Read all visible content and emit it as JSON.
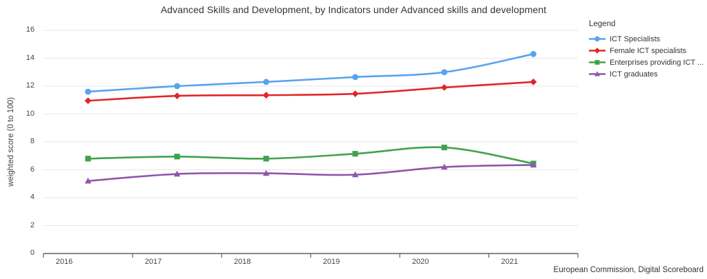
{
  "title": "Advanced Skills and Development, by Indicators under Advanced skills and development",
  "source": "European Commission, Digital Scoreboard",
  "legend": {
    "title": "Legend"
  },
  "chart_data": {
    "type": "line",
    "title": "Advanced Skills and Development, by Indicators under Advanced skills and development",
    "x": [
      "2016",
      "2017",
      "2018",
      "2019",
      "2020",
      "2021"
    ],
    "xlabel": "",
    "ylabel": "weighted score (0 to 100)",
    "ylim": [
      0,
      16
    ],
    "yticks": [
      0,
      2,
      4,
      6,
      8,
      10,
      12,
      14,
      16
    ],
    "grid": true,
    "legend_position": "right",
    "colors": {
      "gridline": "#e6e6e6",
      "axis": "#424242",
      "text": "#333333"
    },
    "series": [
      {
        "name": "ICT Specialists",
        "color": "#57a4ed",
        "marker": "circle",
        "values": [
          11.6,
          12.0,
          12.3,
          12.65,
          13.0,
          14.3
        ]
      },
      {
        "name": "Female ICT specialists",
        "color": "#e0262b",
        "marker": "diamond",
        "values": [
          10.95,
          11.3,
          11.35,
          11.45,
          11.9,
          12.3
        ]
      },
      {
        "name": "Enterprises providing ICT ...",
        "color": "#41a24b",
        "marker": "square",
        "values": [
          6.8,
          6.95,
          6.8,
          7.15,
          7.6,
          6.45
        ]
      },
      {
        "name": "ICT graduates",
        "color": "#9155ab",
        "marker": "triangle",
        "values": [
          5.2,
          5.7,
          5.75,
          5.65,
          6.2,
          6.35
        ]
      }
    ]
  }
}
